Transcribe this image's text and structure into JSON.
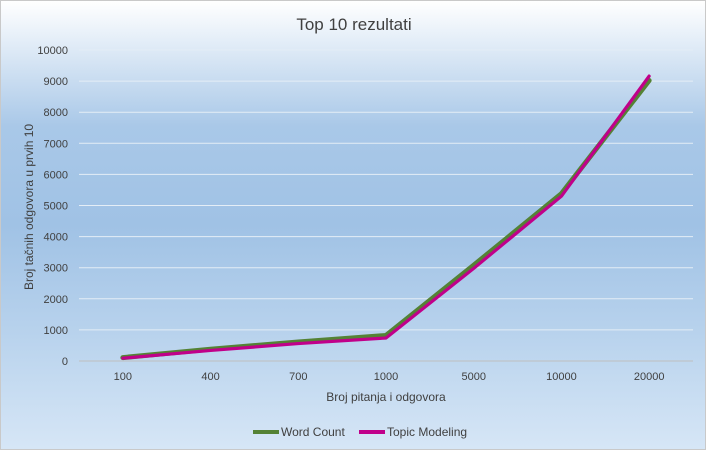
{
  "chart_data": {
    "type": "line",
    "title": "Top 10 rezultati",
    "xlabel": "Broj pitanja i odgovora",
    "ylabel": "Broj tačnih odgovora u prvih 10",
    "categories": [
      "100",
      "400",
      "700",
      "1000",
      "5000",
      "10000",
      "20000"
    ],
    "ylim": [
      0,
      10000
    ],
    "yticks": [
      "0",
      "1000",
      "2000",
      "3000",
      "4000",
      "5000",
      "6000",
      "7000",
      "8000",
      "9000",
      "10000"
    ],
    "grid": true,
    "legend": "bottom",
    "series": [
      {
        "name": "Word Count",
        "color": "#548235",
        "values": [
          110,
          380,
          610,
          820,
          3080,
          5380,
          9020
        ]
      },
      {
        "name": "Topic Modeling",
        "color": "#c0008a",
        "values": [
          90,
          340,
          560,
          740,
          2980,
          5300,
          9160
        ]
      }
    ]
  }
}
